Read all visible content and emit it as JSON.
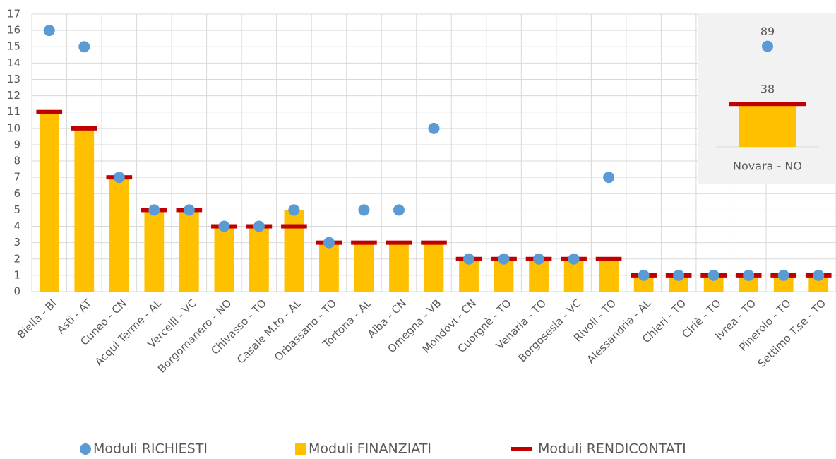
{
  "chart_data": [
    {
      "type": "combo",
      "categories": [
        "Biella - BI",
        "Asti - AT",
        "Cuneo - CN",
        "Acqui Terme - AL",
        "Vercelli - VC",
        "Borgomanero - NO",
        "Chivasso - TO",
        "Casale M.to - AL",
        "Orbassano - TO",
        "Tortona - AL",
        "Alba - CN",
        "Omegna - VB",
        "Mondovì - CN",
        "Cuorgnè - TO",
        "Venaria - TO",
        "Borgosesia - VC",
        "Rivoli - TO",
        "Alessandria - AL",
        "Chieri - TO",
        "Ciriè - TO",
        "Ivrea - TO",
        "Pinerolo - TO",
        "Settimo T.se - TO"
      ],
      "series": [
        {
          "name": "Moduli FINANZIATI",
          "mark": "bar",
          "color": "#ffc000",
          "values": [
            11,
            10,
            7,
            5,
            5,
            4,
            4,
            5,
            3,
            3,
            3,
            3,
            2,
            2,
            2,
            2,
            2,
            1,
            1,
            1,
            1,
            1,
            1
          ]
        },
        {
          "name": "Moduli RENDICONTATI",
          "mark": "dash",
          "color": "#c00000",
          "values": [
            11,
            10,
            7,
            5,
            5,
            4,
            4,
            4,
            3,
            3,
            3,
            3,
            2,
            2,
            2,
            2,
            2,
            1,
            1,
            1,
            1,
            1,
            1
          ]
        },
        {
          "name": "Moduli RICHIESTI",
          "mark": "dot",
          "color": "#5b9bd5",
          "values": [
            16,
            15,
            7,
            5,
            5,
            4,
            4,
            5,
            3,
            5,
            5,
            10,
            2,
            2,
            2,
            2,
            7,
            1,
            1,
            1,
            1,
            1,
            1
          ]
        }
      ],
      "ylim": [
        0,
        17
      ],
      "yticks": [
        0,
        1,
        2,
        3,
        4,
        5,
        6,
        7,
        8,
        9,
        10,
        11,
        12,
        13,
        14,
        15,
        16,
        17
      ],
      "grid": true,
      "legend": "bottom"
    },
    {
      "type": "combo",
      "categories": [
        "Novara - NO"
      ],
      "series": [
        {
          "mark": "bar",
          "color": "#ffc000",
          "values": [
            38
          ],
          "show_labels": false
        },
        {
          "mark": "dash",
          "color": "#c00000",
          "values": [
            38
          ],
          "show_labels": true
        },
        {
          "mark": "dot",
          "color": "#5b9bd5",
          "values": [
            89
          ],
          "show_labels": true
        }
      ],
      "ylim": [
        0,
        100
      ]
    }
  ]
}
